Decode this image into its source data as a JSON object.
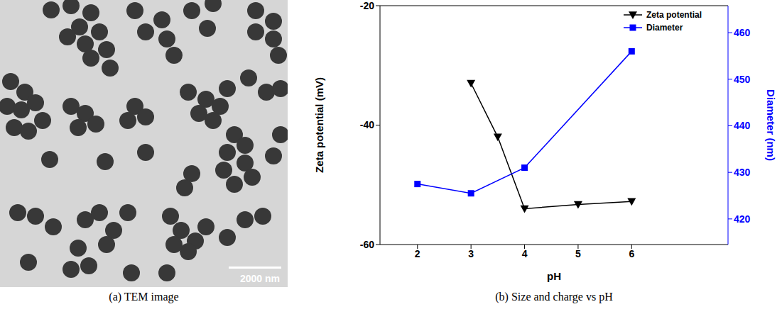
{
  "tem_image": {
    "caption": "(a) TEM image",
    "scale_bar": "2000 nm"
  },
  "chart_data": {
    "type": "line",
    "caption": "(b) Size and charge vs pH",
    "x_label": "pH",
    "y_label": "Zeta potential (mV)",
    "y2_label": "Diameter (nm)",
    "xlim": [
      1.3,
      7.8
    ],
    "xticks": [
      2,
      3,
      4,
      5,
      6
    ],
    "ylim": [
      -60,
      -20
    ],
    "yticks": [
      -60,
      -40,
      -20
    ],
    "y2lim": [
      414.5,
      465.8
    ],
    "y2ticks": [
      420,
      430,
      440,
      450,
      460
    ],
    "legend": "upper right",
    "series": [
      {
        "name": "Zeta potential",
        "color": "#000000",
        "marker": "triangle-down",
        "x": [
          3,
          3.5,
          4,
          5,
          6
        ],
        "values": [
          -33,
          -42,
          -54,
          -53.3,
          -52.8
        ]
      },
      {
        "name": "Diameter",
        "color": "#0000ff",
        "marker": "square",
        "axis": "y2",
        "x": [
          2,
          3,
          4,
          6
        ],
        "values": [
          427.5,
          425.5,
          431,
          456
        ]
      }
    ]
  }
}
